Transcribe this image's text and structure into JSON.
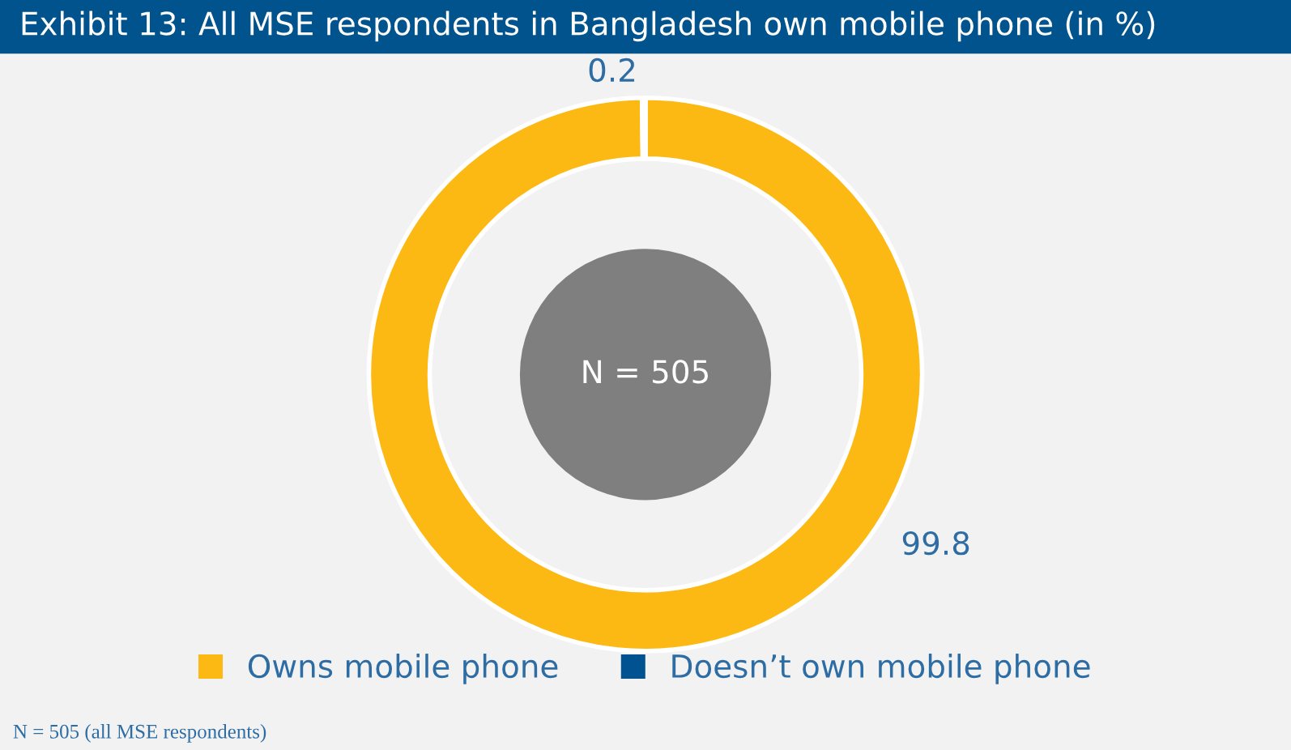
{
  "chart_data": {
    "type": "donut",
    "title": "Exhibit 13: All MSE respondents in Bangladesh own mobile phone (in %)",
    "categories": [
      "Owns mobile phone",
      "Doesn’t own mobile phone"
    ],
    "values": [
      99.8,
      0.2
    ],
    "colors": [
      "#fdb913",
      "#005290"
    ],
    "data_labels": true,
    "legend": "bottom",
    "annotations": [
      "N = 505",
      "N = 505 (all MSE respondents)"
    ]
  }
}
